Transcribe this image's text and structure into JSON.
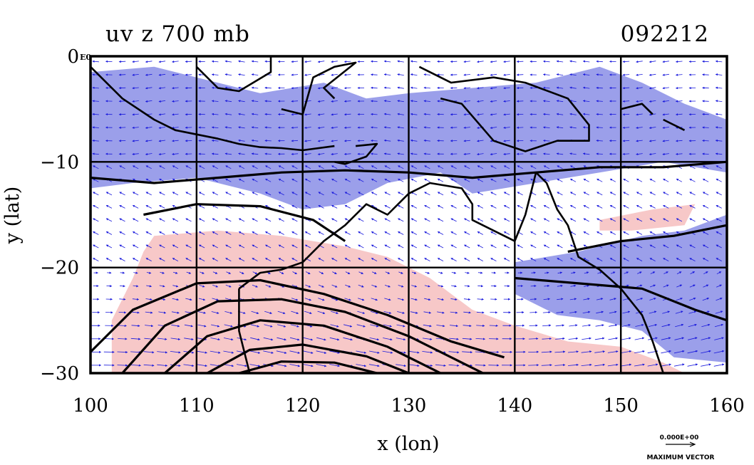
{
  "title_left": "uv z 700 mb",
  "title_right": "092212",
  "corner_label": "E0",
  "x_axis_label": "x (lon)",
  "y_axis_label": "y (lat)",
  "legend": {
    "scale_value": "0.000E+00",
    "caption": "MAXIMUM VECTOR"
  },
  "colors": {
    "negative_shade": "#8a8ee6",
    "positive_shade": "#f7c8c8",
    "vector": "#1a1adc",
    "contour": "#000000"
  },
  "chart_data": {
    "type": "map",
    "title": "uv z 700 mb",
    "xlabel": "x (lon)",
    "ylabel": "y (lat)",
    "xlim": [
      100,
      160
    ],
    "ylim": [
      -30,
      0
    ],
    "xticks": [
      100,
      110,
      120,
      130,
      140,
      150,
      160
    ],
    "yticks": [
      0,
      -10,
      -20,
      -30
    ],
    "xtick_labels": [
      "100",
      "110",
      "120",
      "130",
      "140",
      "150",
      "160"
    ],
    "ytick_labels": [
      "0",
      "−10",
      "−20",
      "−30"
    ],
    "gridlines_lon": [
      110,
      120,
      130,
      140,
      150
    ],
    "gridlines_lat": [
      -10,
      -20
    ],
    "negative_regions": [
      [
        [
          100,
          -1.5
        ],
        [
          106,
          -1
        ],
        [
          110,
          -2
        ],
        [
          116,
          -3.5
        ],
        [
          122,
          -2.5
        ],
        [
          126,
          -4
        ],
        [
          130,
          -3.5
        ],
        [
          136,
          -3
        ],
        [
          142,
          -2.5
        ],
        [
          148,
          -1
        ],
        [
          152,
          -2.5
        ],
        [
          156,
          -4.5
        ],
        [
          160,
          -6
        ],
        [
          160,
          -11
        ],
        [
          154,
          -10
        ],
        [
          148,
          -11
        ],
        [
          142,
          -12
        ],
        [
          136,
          -13
        ],
        [
          133,
          -11
        ],
        [
          128,
          -12
        ],
        [
          124,
          -14
        ],
        [
          120,
          -14.5
        ],
        [
          116,
          -13
        ],
        [
          110,
          -11.5
        ],
        [
          104,
          -12
        ],
        [
          100,
          -12.5
        ]
      ],
      [
        [
          140,
          -19.5
        ],
        [
          146,
          -18.5
        ],
        [
          152,
          -17
        ],
        [
          156,
          -16.5
        ],
        [
          160,
          -15
        ],
        [
          160,
          -29
        ],
        [
          155,
          -28.5
        ],
        [
          152,
          -26
        ],
        [
          148,
          -25
        ],
        [
          144,
          -24.5
        ],
        [
          140,
          -22.5
        ]
      ]
    ],
    "positive_regions": [
      [
        [
          106,
          -17
        ],
        [
          112,
          -16.5
        ],
        [
          118,
          -17
        ],
        [
          124,
          -18
        ],
        [
          128,
          -19
        ],
        [
          132,
          -21
        ],
        [
          136,
          -24
        ],
        [
          140,
          -25.5
        ],
        [
          145,
          -27
        ],
        [
          150,
          -27.5
        ],
        [
          154,
          -29
        ],
        [
          156,
          -30
        ],
        [
          102,
          -30
        ],
        [
          102,
          -25
        ],
        [
          104,
          -21
        ],
        [
          105,
          -18.5
        ]
      ],
      [
        [
          148,
          -15.5
        ],
        [
          153,
          -14.5
        ],
        [
          157,
          -14
        ],
        [
          156,
          -16
        ],
        [
          151,
          -16.5
        ],
        [
          148,
          -16.5
        ]
      ]
    ],
    "contours": [
      [
        [
          100,
          -11.5
        ],
        [
          106,
          -12
        ],
        [
          112,
          -11.5
        ],
        [
          118,
          -11
        ],
        [
          124,
          -10.8
        ],
        [
          130,
          -11
        ],
        [
          136,
          -11.5
        ],
        [
          142,
          -11
        ],
        [
          148,
          -10.5
        ],
        [
          154,
          -10.5
        ],
        [
          160,
          -10
        ]
      ],
      [
        [
          105,
          -15
        ],
        [
          110,
          -14
        ],
        [
          116,
          -14.2
        ],
        [
          121,
          -15.5
        ],
        [
          124,
          -17.5
        ]
      ],
      [
        [
          100,
          -28
        ],
        [
          104,
          -24
        ],
        [
          110,
          -21.5
        ],
        [
          116,
          -21.2
        ],
        [
          122,
          -22.5
        ],
        [
          128,
          -24.5
        ],
        [
          134,
          -27
        ],
        [
          139,
          -28.5
        ]
      ],
      [
        [
          103,
          -30
        ],
        [
          107,
          -25.5
        ],
        [
          112,
          -23.2
        ],
        [
          118,
          -23
        ],
        [
          124,
          -24.2
        ],
        [
          130,
          -26.5
        ],
        [
          135,
          -29
        ],
        [
          137,
          -30
        ]
      ],
      [
        [
          107,
          -30
        ],
        [
          111,
          -26.5
        ],
        [
          116,
          -25
        ],
        [
          122,
          -25.5
        ],
        [
          128,
          -27.5
        ],
        [
          133,
          -30
        ]
      ],
      [
        [
          111,
          -30
        ],
        [
          115,
          -27.8
        ],
        [
          120,
          -27.3
        ],
        [
          126,
          -28.4
        ],
        [
          130,
          -30
        ]
      ],
      [
        [
          114,
          -30
        ],
        [
          118,
          -28.9
        ],
        [
          123,
          -29
        ],
        [
          127,
          -30
        ]
      ],
      [
        [
          140,
          -21
        ],
        [
          146,
          -21.5
        ],
        [
          152,
          -22
        ],
        [
          157,
          -24
        ],
        [
          160,
          -25
        ]
      ],
      [
        [
          145,
          -18.5
        ],
        [
          150,
          -17.5
        ],
        [
          155,
          -17
        ],
        [
          160,
          -16
        ]
      ]
    ],
    "coastlines": [
      [
        [
          100,
          -1
        ],
        [
          103,
          -4
        ],
        [
          106,
          -6
        ],
        [
          108,
          -7
        ],
        [
          112,
          -7.8
        ],
        [
          114,
          -8.3
        ],
        [
          116,
          -8.6
        ],
        [
          118,
          -8.7
        ],
        [
          120,
          -8.9
        ],
        [
          123,
          -8.5
        ]
      ],
      [
        [
          110,
          -1
        ],
        [
          112,
          -3
        ],
        [
          114,
          -3.3
        ],
        [
          117,
          -1.5
        ],
        [
          117,
          0
        ]
      ],
      [
        [
          118,
          -5
        ],
        [
          120,
          -5.5
        ],
        [
          121,
          -2
        ],
        [
          123,
          -1
        ],
        [
          125,
          -0.6
        ],
        [
          122,
          -3
        ],
        [
          123,
          -4
        ]
      ],
      [
        [
          125,
          -8.5
        ],
        [
          127,
          -8.3
        ],
        [
          126,
          -9.5
        ],
        [
          124,
          -10.2
        ],
        [
          123,
          -10
        ]
      ],
      [
        [
          131,
          -1
        ],
        [
          134,
          -2.5
        ],
        [
          138,
          -2
        ],
        [
          141,
          -2.5
        ],
        [
          145,
          -4
        ],
        [
          147,
          -6.5
        ],
        [
          147,
          -8
        ],
        [
          144,
          -8
        ],
        [
          141,
          -9
        ],
        [
          138,
          -8
        ],
        [
          135,
          -4.5
        ],
        [
          133,
          -4
        ]
      ],
      [
        [
          150,
          -5
        ],
        [
          152,
          -4.5
        ],
        [
          153,
          -5.5
        ]
      ],
      [
        [
          154,
          -6
        ],
        [
          156,
          -7
        ]
      ],
      [
        [
          114,
          -22
        ],
        [
          116,
          -20.5
        ],
        [
          118,
          -20.2
        ],
        [
          120,
          -19.5
        ],
        [
          122,
          -17.5
        ],
        [
          124,
          -16
        ],
        [
          126,
          -14
        ],
        [
          128,
          -15
        ],
        [
          130,
          -13
        ],
        [
          132,
          -12
        ],
        [
          135,
          -12.5
        ],
        [
          136,
          -14
        ],
        [
          136,
          -15.5
        ],
        [
          138,
          -16.5
        ],
        [
          140,
          -17.5
        ],
        [
          141,
          -15
        ],
        [
          142,
          -11
        ],
        [
          143,
          -12
        ],
        [
          144,
          -14.5
        ],
        [
          145,
          -16
        ],
        [
          146,
          -19
        ],
        [
          148,
          -20.2
        ],
        [
          150,
          -22
        ],
        [
          152,
          -24.5
        ],
        [
          153,
          -27
        ],
        [
          154,
          -30
        ]
      ],
      [
        [
          114,
          -22
        ],
        [
          114,
          -26
        ],
        [
          115,
          -30
        ]
      ]
    ],
    "vector_field": {
      "description": "700 mb wind vectors (u, v)",
      "regimes": [
        {
          "region": "north of 10S",
          "flow": "easterly"
        },
        {
          "region": "10S to 20S",
          "flow": "south-easterly"
        },
        {
          "region": "south of 20S",
          "flow": "westerly"
        }
      ]
    }
  }
}
